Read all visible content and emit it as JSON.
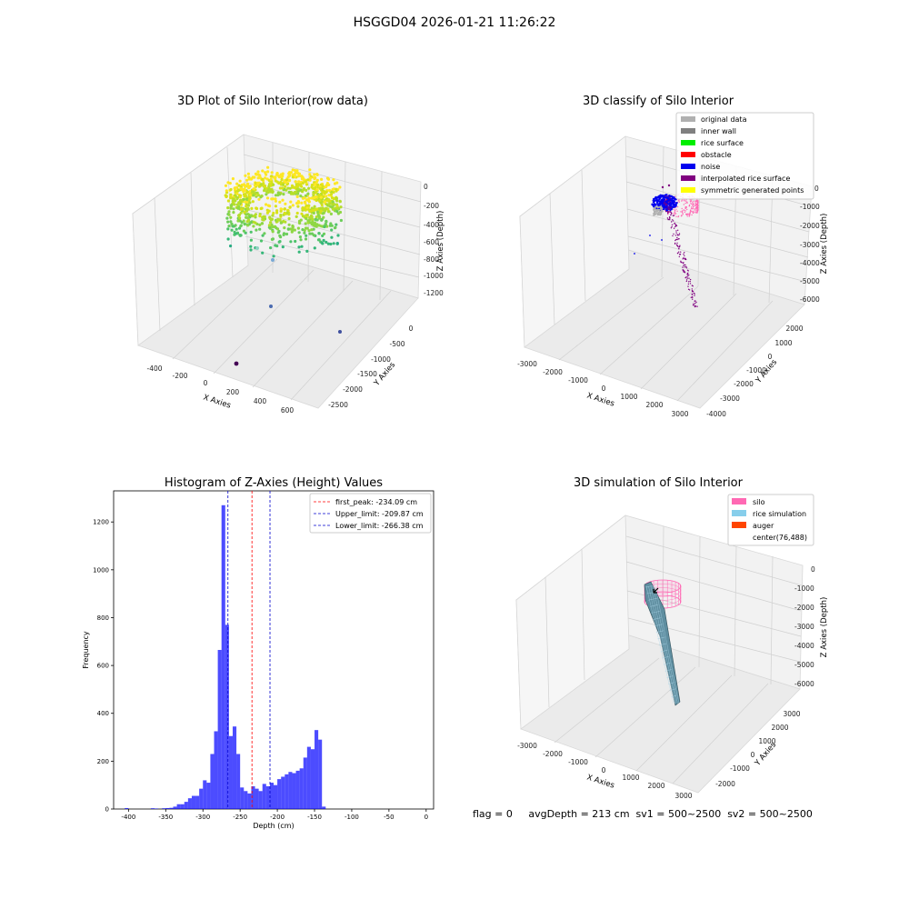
{
  "figure_title": "HSGGD04 2026-01-21 11:26:22",
  "panels": {
    "raw": {
      "title": "3D Plot of Silo Interior(row data)",
      "xlabel": "X Axies",
      "ylabel": "Y Axies",
      "zlabel": "Z Axies (Depth)",
      "xticks": [
        "-400",
        "-200",
        "0",
        "200",
        "400",
        "600"
      ],
      "yticks": [
        "0",
        "-500",
        "-1000",
        "-1500",
        "-2000",
        "-2500"
      ],
      "zticks": [
        "0",
        "-200",
        "-400",
        "-600",
        "-800",
        "-1000",
        "-1200"
      ]
    },
    "classify": {
      "title": "3D classify of Silo Interior",
      "xlabel": "X Axies",
      "ylabel": "Y Axies",
      "zlabel": "Z Axies (Depth)",
      "xticks": [
        "-3000",
        "-2000",
        "-1000",
        "0",
        "1000",
        "2000",
        "3000"
      ],
      "yticks": [
        "2000",
        "1000",
        "0",
        "-1000",
        "-2000",
        "-3000",
        "-4000"
      ],
      "zticks": [
        "0",
        "-1000",
        "-2000",
        "-3000",
        "-4000",
        "-5000",
        "-6000"
      ],
      "legend": [
        {
          "label": "original data",
          "color": "#b0b0b0"
        },
        {
          "label": "inner wall",
          "color": "#808080"
        },
        {
          "label": "rice surface",
          "color": "#00ee00"
        },
        {
          "label": "obstacle",
          "color": "#ff0000"
        },
        {
          "label": "noise",
          "color": "#0000ee"
        },
        {
          "label": "interpolated rice surface",
          "color": "#800080"
        },
        {
          "label": "symmetric generated points",
          "color": "#ffff00"
        }
      ]
    },
    "simulation": {
      "title": "3D simulation of Silo Interior",
      "xlabel": "X Axies",
      "ylabel": "Y Axies",
      "zlabel": "Z Axies (Depth)",
      "xticks": [
        "-3000",
        "-2000",
        "-1000",
        "0",
        "1000",
        "2000",
        "3000"
      ],
      "yticks": [
        "3000",
        "2000",
        "1000",
        "0",
        "-1000",
        "-2000"
      ],
      "zticks": [
        "0",
        "-1000",
        "-2000",
        "-3000",
        "-4000",
        "-5000",
        "-6000"
      ],
      "legend": [
        {
          "label": "silo",
          "color": "#ff69b4"
        },
        {
          "label": "rice simulation",
          "color": "#87ceeb"
        },
        {
          "label": "auger",
          "color": "#ff4500"
        },
        {
          "label": "center(76,488)",
          "color": ""
        }
      ],
      "footer": "flag = 0     avgDepth = 213 cm  sv1 = 500~2500  sv2 = 500~2500"
    }
  },
  "chart_data": [
    {
      "type": "scatter",
      "panel": "raw",
      "title": "3D Plot of Silo Interior(row data)",
      "xlabel": "X Axies",
      "ylabel": "Y Axies",
      "zlabel": "Z Axies (Depth)",
      "xlim": [
        -500,
        700
      ],
      "ylim": [
        -2700,
        200
      ],
      "zlim": [
        -1350,
        50
      ],
      "colormap": "viridis",
      "description_points": "dense ring of points near z≈-200 around silo center plus a few outliers down to z≈-1300"
    },
    {
      "type": "scatter",
      "panel": "classify",
      "title": "3D classify of Silo Interior",
      "xlim": [
        -3300,
        3300
      ],
      "ylim": [
        -4300,
        2600
      ],
      "zlim": [
        -6500,
        400
      ]
    },
    {
      "type": "bar",
      "panel": "histogram",
      "title": "Histogram of Z-Axies (Height) Values",
      "xlabel": "Depth (cm)",
      "ylabel": "Frequency",
      "xlim": [
        -420,
        10
      ],
      "ylim": [
        0,
        1330
      ],
      "xticks": [
        -400,
        -350,
        -300,
        -250,
        -200,
        -150,
        -100,
        -50,
        0
      ],
      "yticks": [
        0,
        200,
        400,
        600,
        800,
        1000,
        1200
      ],
      "bar_color": "#0000ff",
      "bin_width": 5,
      "bins": [
        {
          "x": -402.5,
          "v": 4
        },
        {
          "x": -367.5,
          "v": 3
        },
        {
          "x": -362.5,
          "v": 2
        },
        {
          "x": -352.5,
          "v": 3
        },
        {
          "x": -347.5,
          "v": 4
        },
        {
          "x": -342.5,
          "v": 5
        },
        {
          "x": -337.5,
          "v": 10
        },
        {
          "x": -332.5,
          "v": 20
        },
        {
          "x": -327.5,
          "v": 20
        },
        {
          "x": -322.5,
          "v": 30
        },
        {
          "x": -317.5,
          "v": 45
        },
        {
          "x": -312.5,
          "v": 55
        },
        {
          "x": -307.5,
          "v": 55
        },
        {
          "x": -302.5,
          "v": 85
        },
        {
          "x": -297.5,
          "v": 120
        },
        {
          "x": -292.5,
          "v": 110
        },
        {
          "x": -287.5,
          "v": 230
        },
        {
          "x": -282.5,
          "v": 325
        },
        {
          "x": -277.5,
          "v": 665
        },
        {
          "x": -272.5,
          "v": 1270
        },
        {
          "x": -267.5,
          "v": 770
        },
        {
          "x": -262.5,
          "v": 305
        },
        {
          "x": -257.5,
          "v": 345
        },
        {
          "x": -252.5,
          "v": 230
        },
        {
          "x": -247.5,
          "v": 90
        },
        {
          "x": -242.5,
          "v": 75
        },
        {
          "x": -237.5,
          "v": 65
        },
        {
          "x": -232.5,
          "v": 95
        },
        {
          "x": -227.5,
          "v": 85
        },
        {
          "x": -222.5,
          "v": 75
        },
        {
          "x": -217.5,
          "v": 105
        },
        {
          "x": -212.5,
          "v": 95
        },
        {
          "x": -207.5,
          "v": 110
        },
        {
          "x": -202.5,
          "v": 100
        },
        {
          "x": -197.5,
          "v": 125
        },
        {
          "x": -192.5,
          "v": 135
        },
        {
          "x": -187.5,
          "v": 145
        },
        {
          "x": -182.5,
          "v": 155
        },
        {
          "x": -177.5,
          "v": 150
        },
        {
          "x": -172.5,
          "v": 160
        },
        {
          "x": -167.5,
          "v": 170
        },
        {
          "x": -162.5,
          "v": 215
        },
        {
          "x": -157.5,
          "v": 260
        },
        {
          "x": -152.5,
          "v": 250
        },
        {
          "x": -147.5,
          "v": 330
        },
        {
          "x": -142.5,
          "v": 290
        },
        {
          "x": -137.5,
          "v": 10
        }
      ],
      "vlines": [
        {
          "label": "first_peak: -234.09 cm",
          "x": -234.09,
          "color": "#ff0000"
        },
        {
          "label": "Upper_limit: -209.87 cm",
          "x": -209.87,
          "color": "#0000cc"
        },
        {
          "label": "Lower_limit: -266.38 cm",
          "x": -266.38,
          "color": "#0000cc"
        }
      ],
      "legend_position": "top-right"
    },
    {
      "type": "surface",
      "panel": "simulation",
      "title": "3D simulation of Silo Interior",
      "xlim": [
        -3300,
        3300
      ],
      "ylim": [
        -2400,
        3400
      ],
      "zlim": [
        -6500,
        400
      ],
      "legend": [
        "silo",
        "rice simulation",
        "auger",
        "center(76,488)"
      ],
      "legend_position": "top-right"
    }
  ]
}
